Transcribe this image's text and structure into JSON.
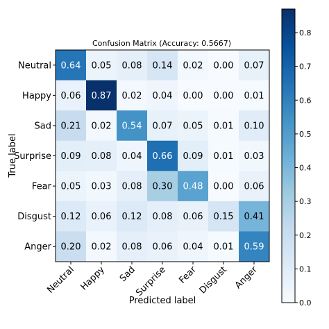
{
  "chart_data": {
    "type": "heatmap",
    "title": "Confusion Matrix (Accuracy: 0.5667)",
    "xlabel": "Predicted label",
    "ylabel": "True label",
    "x_categories": [
      "Neutral",
      "Happy",
      "Sad",
      "Surprise",
      "Fear",
      "Disgust",
      "Anger"
    ],
    "y_categories": [
      "Neutral",
      "Happy",
      "Sad",
      "Surprise",
      "Fear",
      "Disgust",
      "Anger"
    ],
    "values": [
      [
        0.64,
        0.05,
        0.08,
        0.14,
        0.02,
        0.0,
        0.07
      ],
      [
        0.06,
        0.87,
        0.02,
        0.04,
        0.0,
        0.0,
        0.01
      ],
      [
        0.21,
        0.02,
        0.54,
        0.07,
        0.05,
        0.01,
        0.1
      ],
      [
        0.09,
        0.08,
        0.04,
        0.66,
        0.09,
        0.01,
        0.03
      ],
      [
        0.05,
        0.03,
        0.08,
        0.3,
        0.48,
        0.0,
        0.06
      ],
      [
        0.12,
        0.06,
        0.12,
        0.08,
        0.06,
        0.15,
        0.41
      ],
      [
        0.2,
        0.02,
        0.08,
        0.06,
        0.04,
        0.01,
        0.59
      ]
    ],
    "value_format": "0.00",
    "colormap": "Blues",
    "colorbar": {
      "range": [
        0.0,
        0.87
      ],
      "ticks": [
        "0.0",
        "0.1",
        "0.2",
        "0.3",
        "0.4",
        "0.5",
        "0.6",
        "0.7",
        "0.8"
      ]
    },
    "grid": false
  }
}
